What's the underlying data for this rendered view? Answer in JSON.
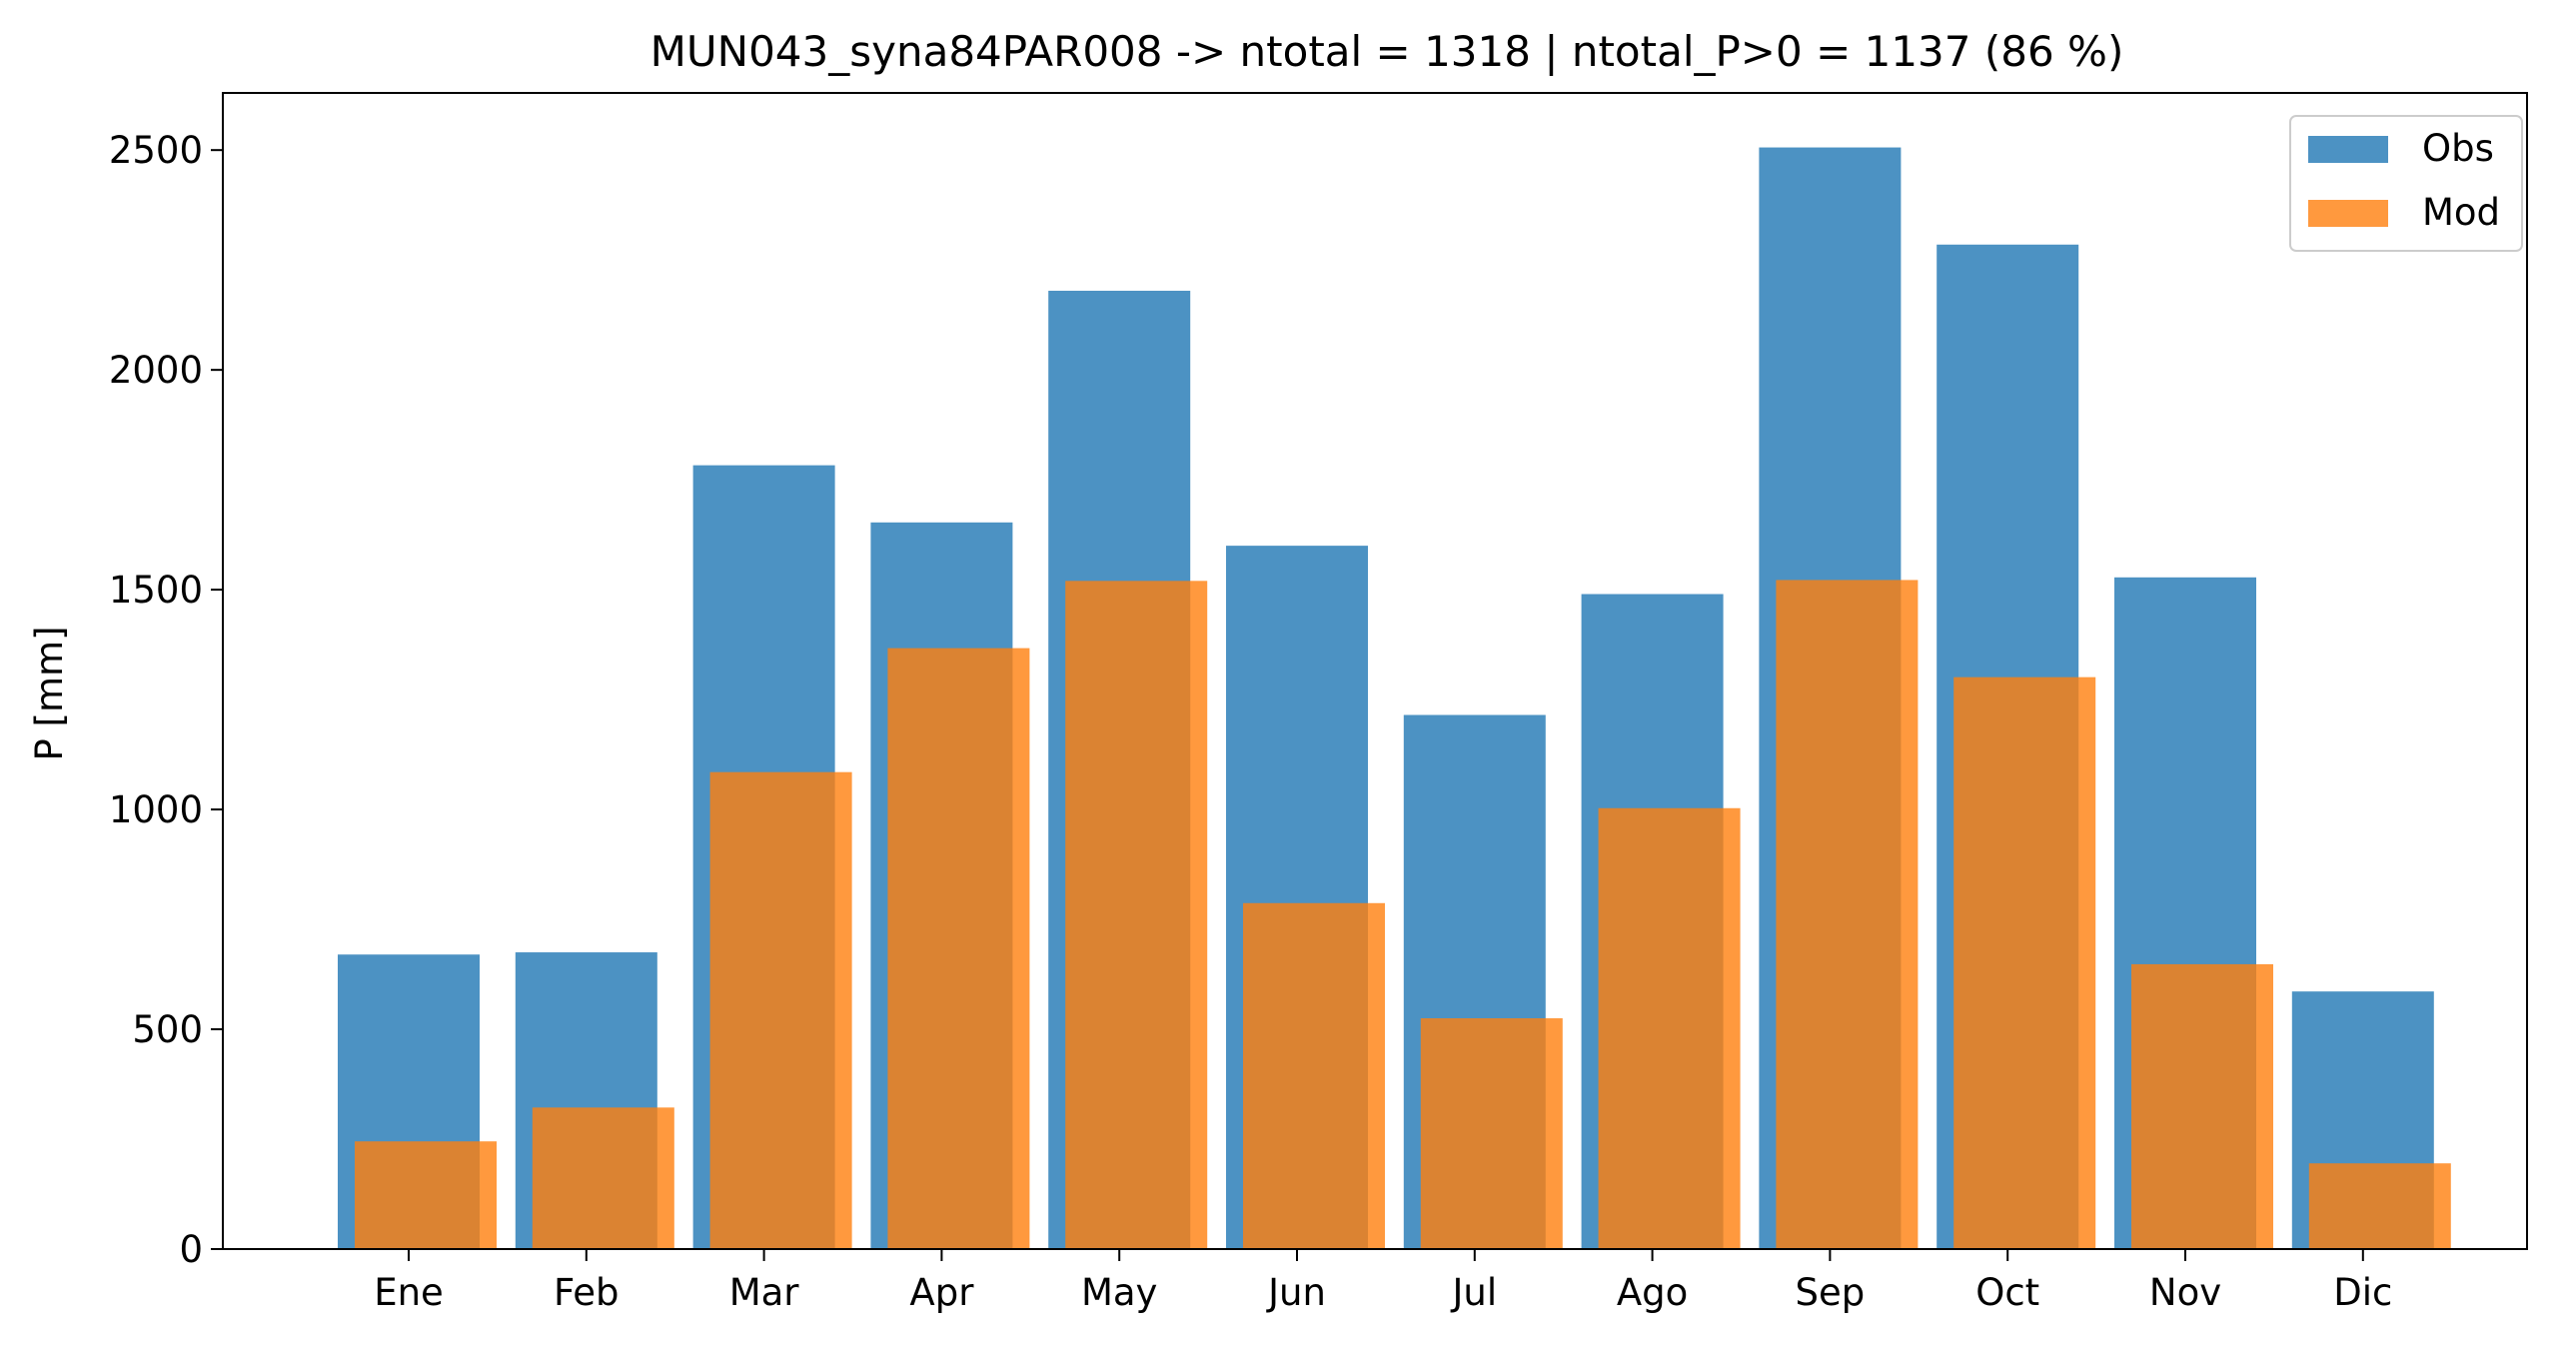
{
  "chart_data": {
    "type": "bar",
    "title": "MUN043_syna84PAR008 -> ntotal = 1318 | ntotal_P>0 = 1137 (86 %)",
    "xlabel": "",
    "ylabel": "P [mm]",
    "ylim": [
      0,
      2630
    ],
    "yticks": [
      0,
      500,
      1000,
      1500,
      2000,
      2500
    ],
    "grid": false,
    "legend_position": "top-right",
    "categories": [
      "Ene",
      "Feb",
      "Mar",
      "Apr",
      "May",
      "Jun",
      "Jul",
      "Ago",
      "Sep",
      "Oct",
      "Nov",
      "Dic"
    ],
    "series": [
      {
        "name": "Obs",
        "color": "#1f77b4",
        "values": [
          670,
          675,
          1783,
          1653,
          2180,
          1600,
          1215,
          1490,
          2506,
          2285,
          1528,
          586
        ]
      },
      {
        "name": "Mod",
        "color": "#ff7f0e",
        "values": [
          245,
          322,
          1085,
          1367,
          1520,
          787,
          525,
          1003,
          1522,
          1301,
          648,
          195
        ]
      }
    ]
  }
}
